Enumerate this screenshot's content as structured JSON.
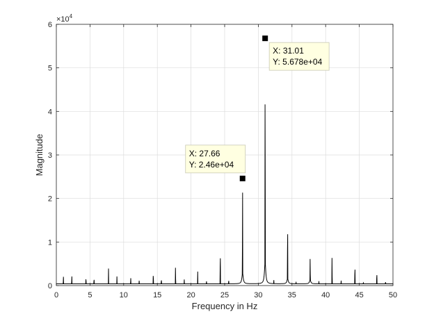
{
  "chart_data": {
    "type": "line",
    "title": "",
    "xlabel": "Frequency in Hz",
    "ylabel": "Magnitude",
    "xlim": [
      0,
      50
    ],
    "ylim": [
      0,
      60000
    ],
    "y_exponent_label": "×10",
    "y_exponent_power": "4",
    "x_ticks": [
      "0",
      "5",
      "10",
      "15",
      "20",
      "25",
      "30",
      "35",
      "40",
      "45",
      "50"
    ],
    "y_ticks": [
      "0",
      "1",
      "2",
      "3",
      "4",
      "5",
      "6"
    ],
    "grid": true,
    "line_color": "#000000",
    "baseline": 400,
    "peaks": [
      {
        "x": 1.05,
        "y": 2400
      },
      {
        "x": 2.3,
        "y": 2500
      },
      {
        "x": 4.4,
        "y": 2100
      },
      {
        "x": 5.6,
        "y": 1900
      },
      {
        "x": 7.75,
        "y": 3900
      },
      {
        "x": 9.0,
        "y": 2100
      },
      {
        "x": 11.05,
        "y": 2000
      },
      {
        "x": 12.3,
        "y": 1300
      },
      {
        "x": 14.4,
        "y": 3400
      },
      {
        "x": 15.6,
        "y": 1700
      },
      {
        "x": 17.7,
        "y": 5000
      },
      {
        "x": 19.0,
        "y": 1400
      },
      {
        "x": 21.0,
        "y": 3200
      },
      {
        "x": 22.3,
        "y": 1100
      },
      {
        "x": 24.35,
        "y": 10100
      },
      {
        "x": 25.6,
        "y": 1500
      },
      {
        "x": 27.66,
        "y": 24600
      },
      {
        "x": 31.01,
        "y": 56780
      },
      {
        "x": 32.3,
        "y": 1400
      },
      {
        "x": 34.35,
        "y": 17300
      },
      {
        "x": 35.6,
        "y": 900
      },
      {
        "x": 37.7,
        "y": 6400
      },
      {
        "x": 39.0,
        "y": 1000
      },
      {
        "x": 40.95,
        "y": 7800
      },
      {
        "x": 42.3,
        "y": 1300
      },
      {
        "x": 44.35,
        "y": 5800
      },
      {
        "x": 45.6,
        "y": 800
      },
      {
        "x": 47.6,
        "y": 3700
      },
      {
        "x": 48.9,
        "y": 1000
      }
    ],
    "broad_humps": [
      {
        "x": 27.66,
        "height": 2500,
        "width": 0.28
      },
      {
        "x": 31.01,
        "height": 5000,
        "width": 0.28
      },
      {
        "x": 34.35,
        "height": 1200,
        "width": 0.28
      },
      {
        "x": 37.7,
        "height": 900,
        "width": 0.28
      }
    ],
    "datatips": [
      {
        "x": 27.66,
        "y": 24600,
        "label_x": "X: 27.66",
        "label_y": "Y: 2.46e+04",
        "placement": "above-left"
      },
      {
        "x": 31.01,
        "y": 56780,
        "label_x": "X: 31.01",
        "label_y": "Y: 5.678e+04",
        "placement": "below-right"
      }
    ]
  }
}
